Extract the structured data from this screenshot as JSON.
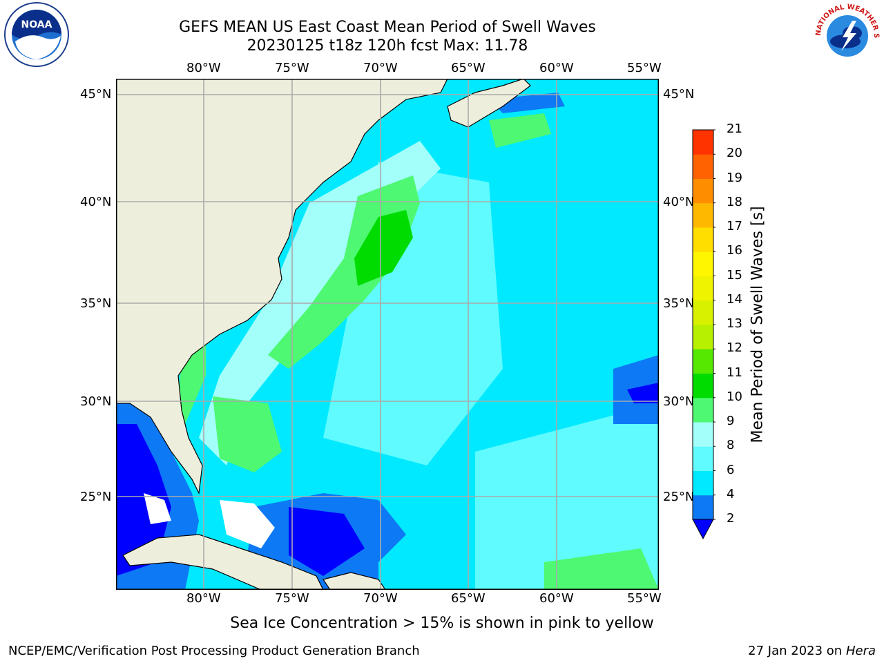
{
  "header": {
    "title_line1": "GEFS MEAN US East Coast Mean Period of Swell Waves",
    "title_line2": "20230125 t18z 120h fcst   Max: 11.78"
  },
  "logos": {
    "left": {
      "icon": "noaa-logo-icon",
      "text": "NOAA"
    },
    "right": {
      "icon": "national-weather-service-logo-icon",
      "text": "NATIONAL WEATHER SERVICE"
    }
  },
  "map": {
    "lon_labels": [
      "80°W",
      "75°W",
      "70°W",
      "65°W",
      "60°W",
      "55°W"
    ],
    "lat_labels": [
      "45°N",
      "40°N",
      "35°N",
      "30°N",
      "25°N"
    ],
    "colors": {
      "land": "#eeeedd",
      "gridline": "#aaaaaa",
      "no_data": "#ffffff"
    }
  },
  "colorbar": {
    "label": "Mean Period of Swell Waves [s]",
    "ticks": [
      "2",
      "4",
      "6",
      "8",
      "9",
      "10",
      "11",
      "12",
      "13",
      "14",
      "15",
      "16",
      "17",
      "18",
      "19",
      "20",
      "21"
    ],
    "colors": [
      "#0e79f5",
      "#00e9ff",
      "#5ffbff",
      "#a2fffa",
      "#4ef872",
      "#00dc00",
      "#56e800",
      "#b7f000",
      "#d7f100",
      "#f0f300",
      "#fff600",
      "#ffde00",
      "#ffb800",
      "#ff8d00",
      "#ff6200",
      "#ff3300",
      "#ff0000"
    ],
    "under_color": "#0000ff"
  },
  "caption": "Sea Ice Concentration > 15% is shown in pink to yellow",
  "footer": {
    "left": "NCEP/EMC/Verification Post Processing Product Generation Branch",
    "right_date": "27 Jan 2023 on",
    "right_host": "Hera"
  }
}
